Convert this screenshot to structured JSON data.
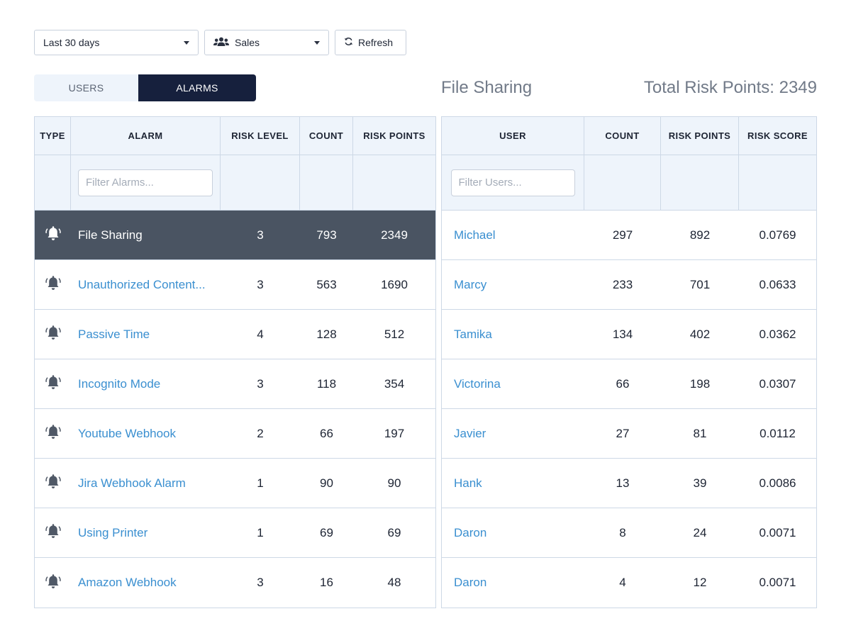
{
  "toolbar": {
    "range_label": "Last 30 days",
    "group_label": "Sales",
    "refresh_label": "Refresh"
  },
  "tabs": [
    {
      "label": "USERS",
      "active": false
    },
    {
      "label": "ALARMS",
      "active": true
    }
  ],
  "summary": {
    "selected_alarm": "File Sharing",
    "total_risk_points": "Total Risk Points: 2349"
  },
  "alarms_table": {
    "headers": [
      "TYPE",
      "ALARM",
      "RISK LEVEL",
      "COUNT",
      "RISK POINTS"
    ],
    "filter_placeholder": "Filter Alarms...",
    "rows": [
      {
        "alarm": "File Sharing",
        "risk_level": "3",
        "count": "793",
        "risk_points": "2349",
        "selected": true
      },
      {
        "alarm": "Unauthorized Content...",
        "risk_level": "3",
        "count": "563",
        "risk_points": "1690",
        "selected": false
      },
      {
        "alarm": "Passive Time",
        "risk_level": "4",
        "count": "128",
        "risk_points": "512",
        "selected": false
      },
      {
        "alarm": "Incognito Mode",
        "risk_level": "3",
        "count": "118",
        "risk_points": "354",
        "selected": false
      },
      {
        "alarm": "Youtube Webhook",
        "risk_level": "2",
        "count": "66",
        "risk_points": "197",
        "selected": false
      },
      {
        "alarm": "Jira Webhook Alarm",
        "risk_level": "1",
        "count": "90",
        "risk_points": "90",
        "selected": false
      },
      {
        "alarm": "Using Printer",
        "risk_level": "1",
        "count": "69",
        "risk_points": "69",
        "selected": false
      },
      {
        "alarm": "Amazon Webhook",
        "risk_level": "3",
        "count": "16",
        "risk_points": "48",
        "selected": false
      }
    ]
  },
  "users_table": {
    "headers": [
      "USER",
      "COUNT",
      "RISK POINTS",
      "RISK SCORE"
    ],
    "filter_placeholder": "Filter Users...",
    "rows": [
      {
        "user": "Michael",
        "count": "297",
        "risk_points": "892",
        "risk_score": "0.0769"
      },
      {
        "user": "Marcy",
        "count": "233",
        "risk_points": "701",
        "risk_score": "0.0633"
      },
      {
        "user": "Tamika",
        "count": "134",
        "risk_points": "402",
        "risk_score": "0.0362"
      },
      {
        "user": "Victorina",
        "count": "66",
        "risk_points": "198",
        "risk_score": "0.0307"
      },
      {
        "user": "Javier",
        "count": "27",
        "risk_points": "81",
        "risk_score": "0.0112"
      },
      {
        "user": "Hank",
        "count": "13",
        "risk_points": "39",
        "risk_score": "0.0086"
      },
      {
        "user": "Daron",
        "count": "8",
        "risk_points": "24",
        "risk_score": "0.0071"
      },
      {
        "user": "Daron",
        "count": "4",
        "risk_points": "12",
        "risk_score": "0.0071"
      }
    ]
  },
  "icons": {
    "alarm_type": "bell-icon",
    "group": "users-group-icon",
    "refresh": "refresh-icon",
    "dropdown": "chevron-down-icon"
  },
  "colors": {
    "accent_dark": "#16203d",
    "selected_row": "#4a5462",
    "link": "#3a8fd0",
    "header_bg": "#eef4fb"
  }
}
